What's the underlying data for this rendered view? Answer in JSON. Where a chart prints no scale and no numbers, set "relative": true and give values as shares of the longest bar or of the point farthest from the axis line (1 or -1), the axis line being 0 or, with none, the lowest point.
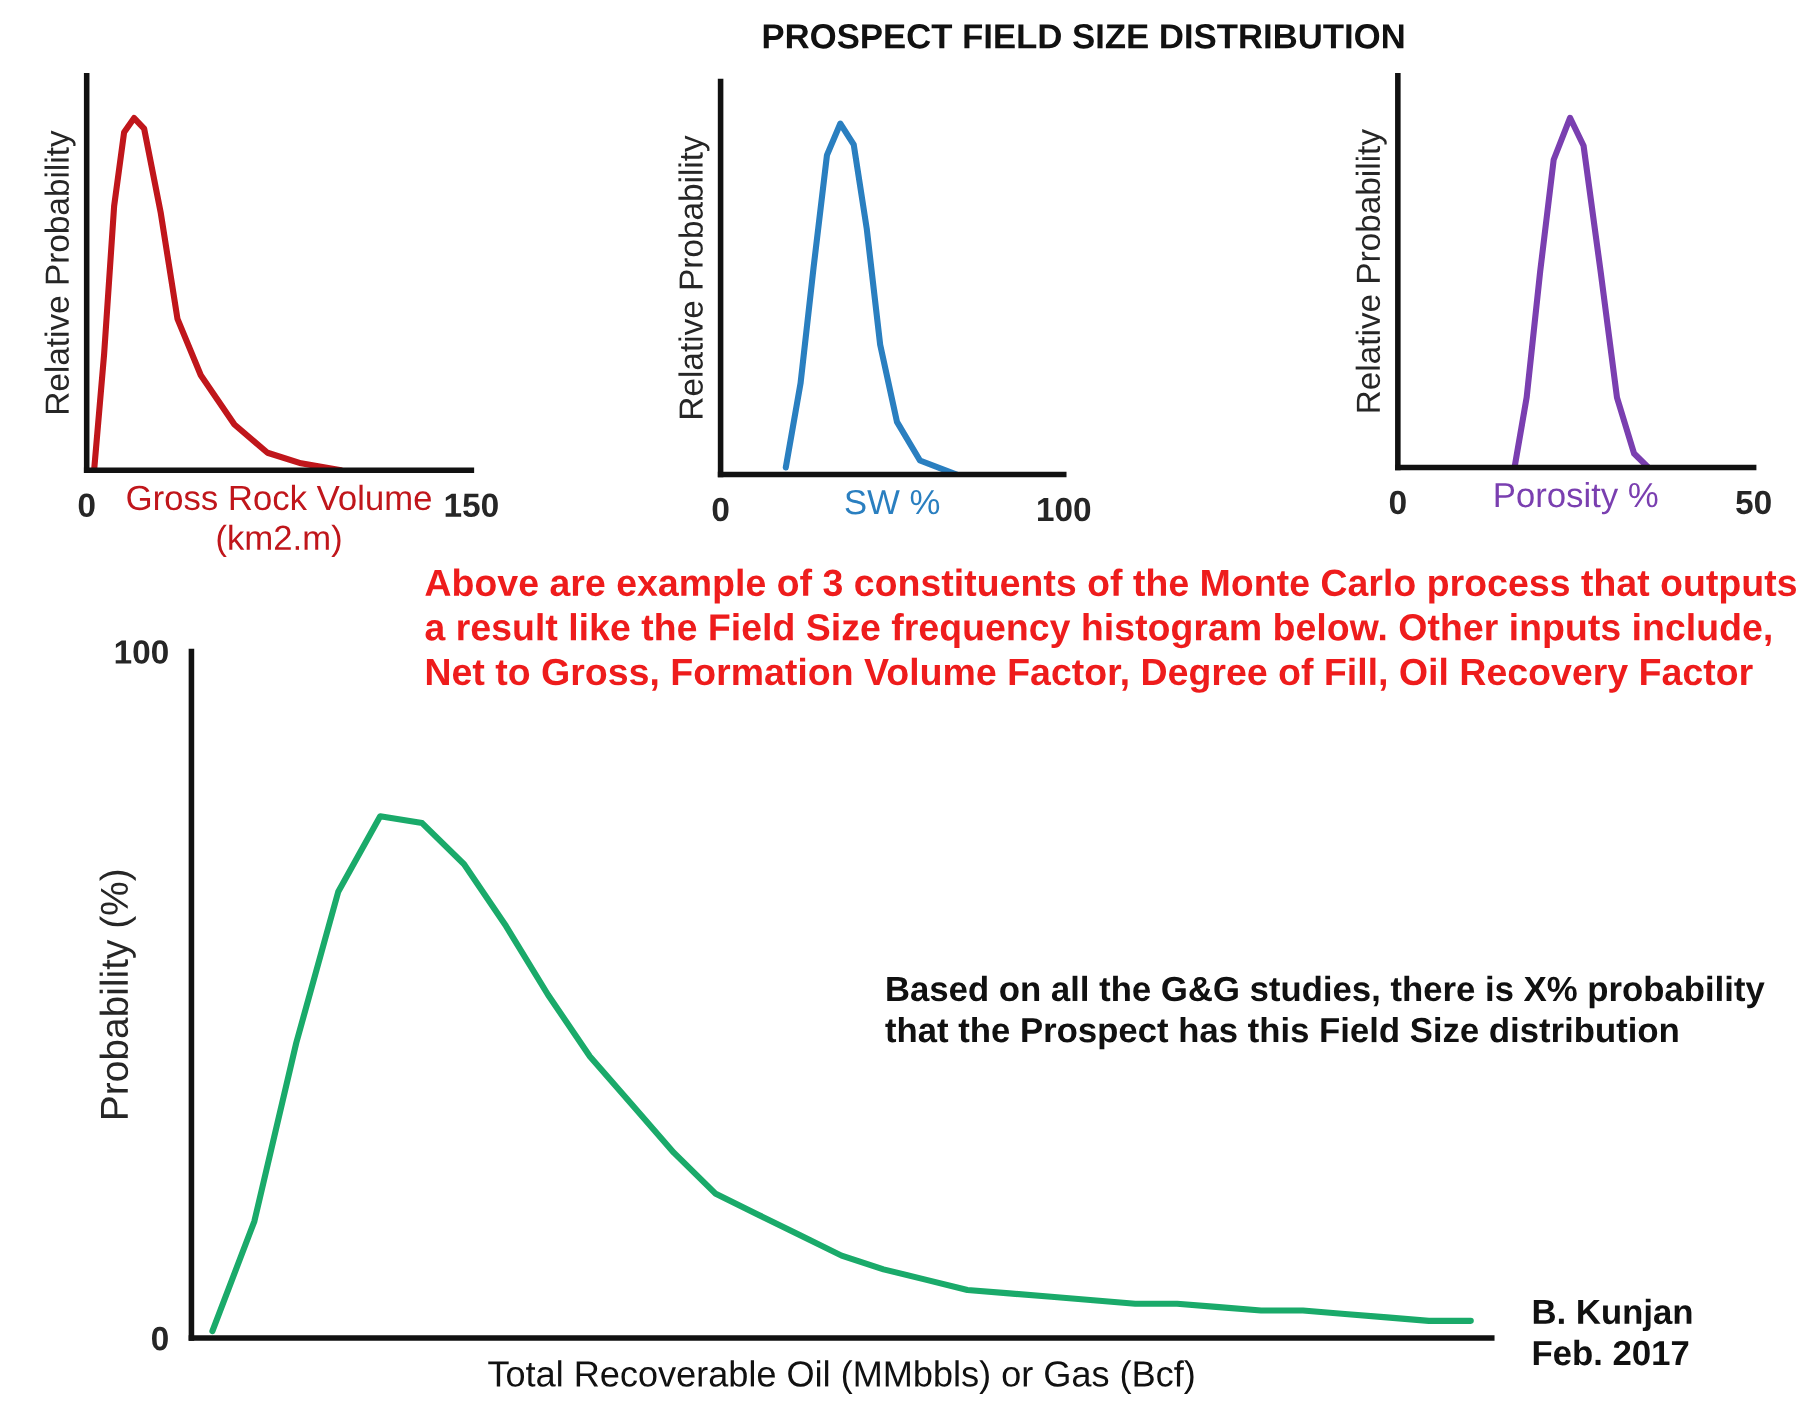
{
  "chart_data": [
    {
      "type": "line",
      "relative": true,
      "ylabel": "Relative Probability",
      "xlabel": "Gross Rock Volume\n(km2.m)",
      "xlim": [
        0,
        150
      ],
      "xticks": [
        0,
        150
      ],
      "tick_labels": "x",
      "grid": false,
      "legend": false,
      "series": [
        {
          "color": "#c0161b",
          "x": [
            2.9,
            6.8,
            10.7,
            14.6,
            18.5,
            22.4,
            28.9,
            35.4,
            44.5,
            57.6,
            70.5,
            83.6,
            99.2
          ],
          "values": [
            0,
            0.33,
            0.75,
            0.96,
            1,
            0.97,
            0.73,
            0.43,
            0.27,
            0.13,
            0.05,
            0.02,
            0
          ]
        }
      ]
    },
    {
      "type": "line",
      "relative": true,
      "title": "PROSPECT FIELD SIZE DISTRIBUTION",
      "ylabel": "Relative Probability",
      "xlabel": "SW %",
      "xlim": [
        0,
        100
      ],
      "xticks": [
        0,
        100
      ],
      "tick_labels": "x",
      "grid": false,
      "legend": false,
      "series": [
        {
          "color": "#2a7fc0",
          "x": [
            19.0,
            23.3,
            27.1,
            31.0,
            34.9,
            38.8,
            42.6,
            46.5,
            51.4,
            58.1,
            68.8
          ],
          "values": [
            0.02,
            0.26,
            0.59,
            0.91,
            1,
            0.94,
            0.7,
            0.37,
            0.15,
            0.04,
            0
          ]
        }
      ]
    },
    {
      "type": "line",
      "relative": true,
      "ylabel": "Relative Probability",
      "xlabel": "Porosity %",
      "xlim": [
        0,
        50
      ],
      "xticks": [
        0,
        50
      ],
      "tick_labels": "x",
      "grid": false,
      "legend": false,
      "series": [
        {
          "color": "#7a3fb0",
          "x": [
            16.4,
            18.1,
            20.0,
            21.9,
            24.2,
            26.1,
            28.5,
            30.8,
            33.2,
            35.2
          ],
          "values": [
            0,
            0.2,
            0.56,
            0.88,
            1,
            0.92,
            0.56,
            0.2,
            0.04,
            0
          ]
        }
      ]
    },
    {
      "type": "line",
      "ylabel": "Probability (%)",
      "xlabel": "Total Recoverable Oil (MMbbls) or Gas (Bcf)",
      "ylim": [
        0,
        100
      ],
      "yticks": [
        0,
        100
      ],
      "tick_labels": "y",
      "grid": false,
      "legend": false,
      "categories": [
        null,
        null,
        null,
        null,
        null,
        null,
        null,
        null,
        null,
        null,
        null,
        null,
        null,
        null,
        null,
        null,
        null,
        null,
        null,
        null,
        null,
        null,
        null,
        null,
        null,
        null,
        null,
        null,
        null,
        null,
        null
      ],
      "series": [
        {
          "color": "#1aaa6a",
          "values": [
            1,
            17,
            43,
            65,
            76,
            75,
            69,
            60,
            50,
            41,
            34,
            27,
            21,
            18,
            15,
            12,
            10,
            8.5,
            7,
            6.5,
            6,
            5.5,
            5,
            5,
            4.5,
            4,
            4,
            3.5,
            3,
            2.5,
            2.5
          ]
        }
      ],
      "annotations": [
        "Above are example of 3 constituents of the Monte Carlo process that outputs a result like the Field Size frequency histogram below. Other inputs include, Net to Gross, Formation Volume Factor, Degree of Fill, Oil Recovery Factor",
        "Based on all the G&G studies, there is X% probability that the Prospect has this Field Size distribution",
        "B. Kunjan\nFeb. 2017"
      ]
    }
  ]
}
